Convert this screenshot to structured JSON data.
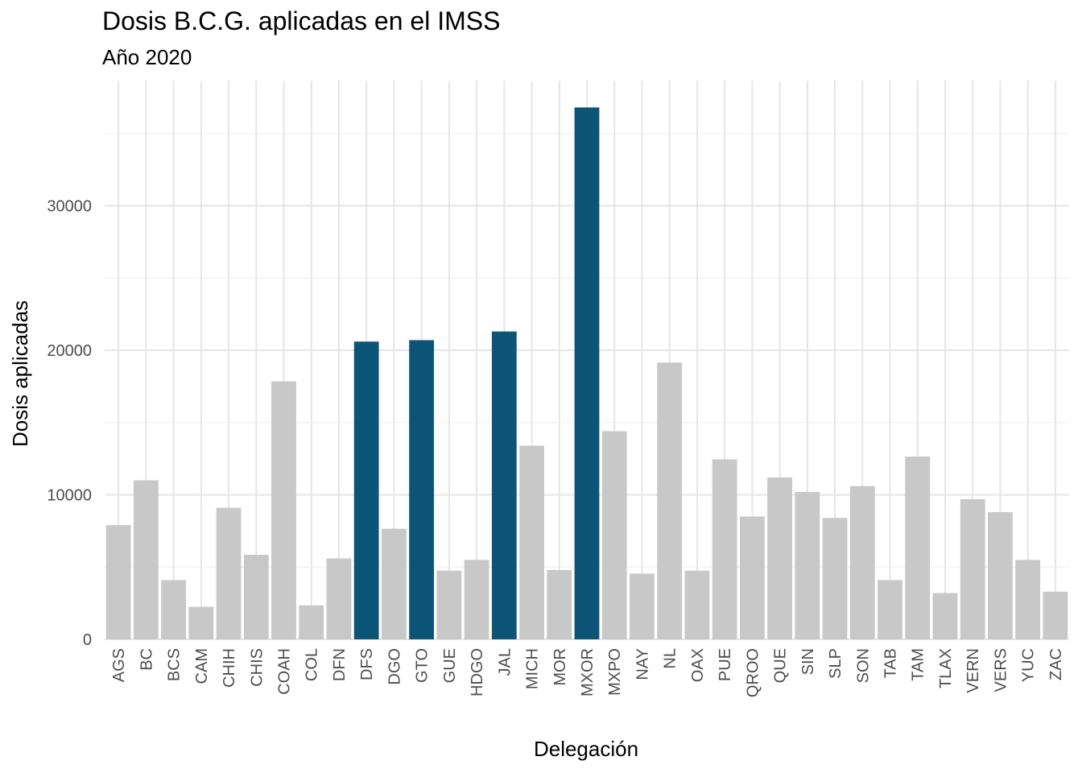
{
  "chart_data": {
    "type": "bar",
    "title": "Dosis B.C.G. aplicadas en el IMSS",
    "subtitle": "Año 2020",
    "xlabel": "Delegación",
    "ylabel": "Dosis aplicadas",
    "ylim": [
      0,
      38000
    ],
    "yticks": [
      0,
      10000,
      20000,
      30000
    ],
    "grid": true,
    "categories": [
      "AGS",
      "BC",
      "BCS",
      "CAM",
      "CHIH",
      "CHIS",
      "COAH",
      "COL",
      "DFN",
      "DFS",
      "DGO",
      "GTO",
      "GUE",
      "HDGO",
      "JAL",
      "MICH",
      "MOR",
      "MXOR",
      "MXPO",
      "NAY",
      "NL",
      "OAX",
      "PUE",
      "QROO",
      "QUE",
      "SIN",
      "SLP",
      "SON",
      "TAB",
      "TAM",
      "TLAX",
      "VERN",
      "VERS",
      "YUC",
      "ZAC"
    ],
    "values": [
      7900,
      11000,
      4100,
      2250,
      9100,
      5850,
      17850,
      2350,
      5600,
      20600,
      7650,
      20700,
      4750,
      5500,
      21300,
      13400,
      4800,
      36800,
      14400,
      4550,
      19150,
      4750,
      12450,
      8500,
      11200,
      10200,
      8400,
      10600,
      4100,
      12650,
      3200,
      9700,
      8800,
      5500,
      3300
    ],
    "highlighted": [
      "DFS",
      "GTO",
      "JAL",
      "MXOR"
    ],
    "colors": {
      "default": "#c8c8c8",
      "highlight": "#0d5577",
      "grid_major": "#e6e6e6",
      "grid_minor": "#f0f0f0"
    }
  }
}
